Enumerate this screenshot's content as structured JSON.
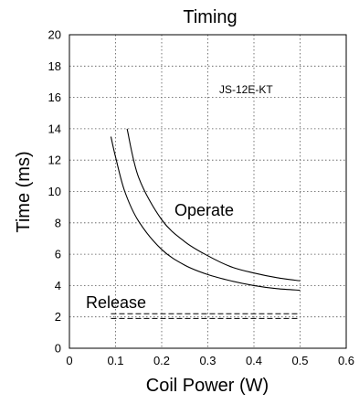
{
  "chart_data": {
    "type": "line",
    "title": "Timing",
    "xlabel": "Coil Power (W)",
    "ylabel": "Time (ms)",
    "xlim": [
      0,
      0.6
    ],
    "ylim": [
      0,
      20
    ],
    "xticks": [
      "0",
      "0.1",
      "0.2",
      "0.3",
      "0.4",
      "0.5",
      "0.6"
    ],
    "yticks": [
      "0",
      "2",
      "4",
      "6",
      "8",
      "10",
      "12",
      "14",
      "16",
      "18",
      "20"
    ],
    "grid": true,
    "annotations": {
      "model": "JS-12E-KT",
      "operate": "Operate",
      "release": "Release"
    },
    "series": [
      {
        "group": "operate",
        "style": "solid",
        "x": [
          0.09,
          0.1,
          0.12,
          0.15,
          0.2,
          0.25,
          0.3,
          0.35,
          0.4,
          0.45,
          0.5
        ],
        "y": [
          13.5,
          12.2,
          10.0,
          8.1,
          6.3,
          5.3,
          4.7,
          4.3,
          4.0,
          3.8,
          3.7
        ]
      },
      {
        "group": "operate",
        "style": "solid",
        "x": [
          0.125,
          0.15,
          0.2,
          0.25,
          0.3,
          0.35,
          0.4,
          0.45,
          0.5
        ],
        "y": [
          14.0,
          10.9,
          8.2,
          6.8,
          5.9,
          5.2,
          4.8,
          4.5,
          4.3
        ]
      },
      {
        "group": "release",
        "style": "dashed",
        "x": [
          0.09,
          0.5
        ],
        "y": [
          2.2,
          2.2
        ]
      },
      {
        "group": "release",
        "style": "dashed",
        "x": [
          0.09,
          0.5
        ],
        "y": [
          1.9,
          1.9
        ]
      }
    ]
  }
}
